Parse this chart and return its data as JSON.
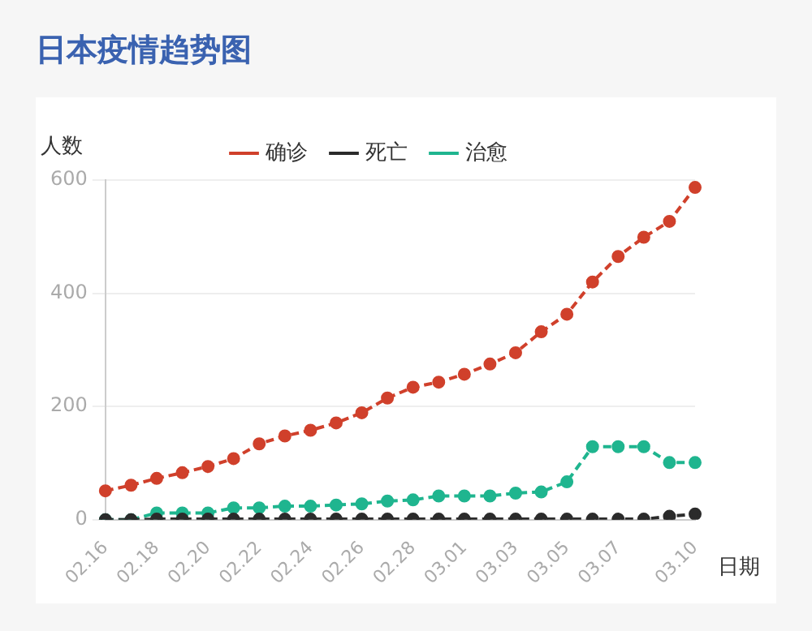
{
  "chart_data": {
    "type": "line",
    "title": "日本疫情趋势图",
    "ylabel": "人数",
    "xlabel": "日期",
    "categories": [
      "02.16",
      null,
      "02.18",
      null,
      "02.20",
      null,
      "02.22",
      null,
      "02.24",
      null,
      "02.26",
      null,
      "02.28",
      null,
      "03.01",
      null,
      "03.03",
      null,
      "03.05",
      null,
      "03.07",
      null,
      null,
      "03.10"
    ],
    "series": [
      {
        "name": "确诊",
        "color": "#d0402b",
        "values": [
          51,
          61,
          73,
          83,
          94,
          108,
          134,
          148,
          158,
          171,
          189,
          215,
          234,
          243,
          257,
          275,
          295,
          332,
          363,
          420,
          465,
          499,
          527,
          587
        ]
      },
      {
        "name": "死亡",
        "color": "#2b2b2b",
        "values": [
          0,
          0,
          1,
          1,
          1,
          1,
          1,
          1,
          1,
          1,
          1,
          1,
          1,
          1,
          1,
          1,
          1,
          1,
          1,
          1,
          1,
          1,
          6,
          10
        ]
      },
      {
        "name": "治愈",
        "color": "#1fb58f",
        "values": [
          0,
          0,
          12,
          12,
          12,
          21,
          21,
          24,
          24,
          26,
          28,
          33,
          35,
          42,
          42,
          42,
          47,
          49,
          67,
          129,
          129,
          129,
          101,
          101
        ]
      }
    ],
    "ylim": [
      0,
      600
    ],
    "yticks": [
      0,
      200,
      400,
      600
    ],
    "grid": "y",
    "legend": "top",
    "marker": "circle",
    "line_style": "dashed"
  }
}
